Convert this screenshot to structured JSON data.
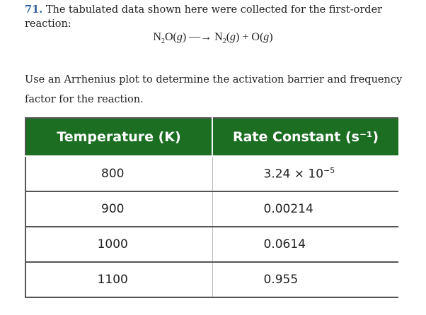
{
  "problem": {
    "number": "71.",
    "statement": "The tabulated data shown here were collected for the first-order reaction:"
  },
  "equation": {
    "reactant_base": "N",
    "reactant_sub": "2",
    "reactant_rest": "O(",
    "phase_g": "g",
    "close": ")",
    "arrow": "—→",
    "product1_base": "N",
    "product1_sub": "2",
    "product1_rest": "(",
    "plus": " + ",
    "product2": "O("
  },
  "instructions": "Use an Arrhenius plot to determine the activation barrier and frequency factor for the reaction.",
  "table": {
    "headers": [
      "Temperature (K)",
      "Rate Constant (s⁻¹)"
    ],
    "rows": [
      {
        "temp": "800",
        "rate_mantissa": "3.24 × 10",
        "rate_exp": "−5",
        "rate": ""
      },
      {
        "temp": "900",
        "rate_mantissa": "",
        "rate_exp": "",
        "rate": "0.00214"
      },
      {
        "temp": "1000",
        "rate_mantissa": "",
        "rate_exp": "",
        "rate": "0.0614"
      },
      {
        "temp": "1100",
        "rate_mantissa": "",
        "rate_exp": "",
        "rate": "0.955"
      }
    ]
  }
}
